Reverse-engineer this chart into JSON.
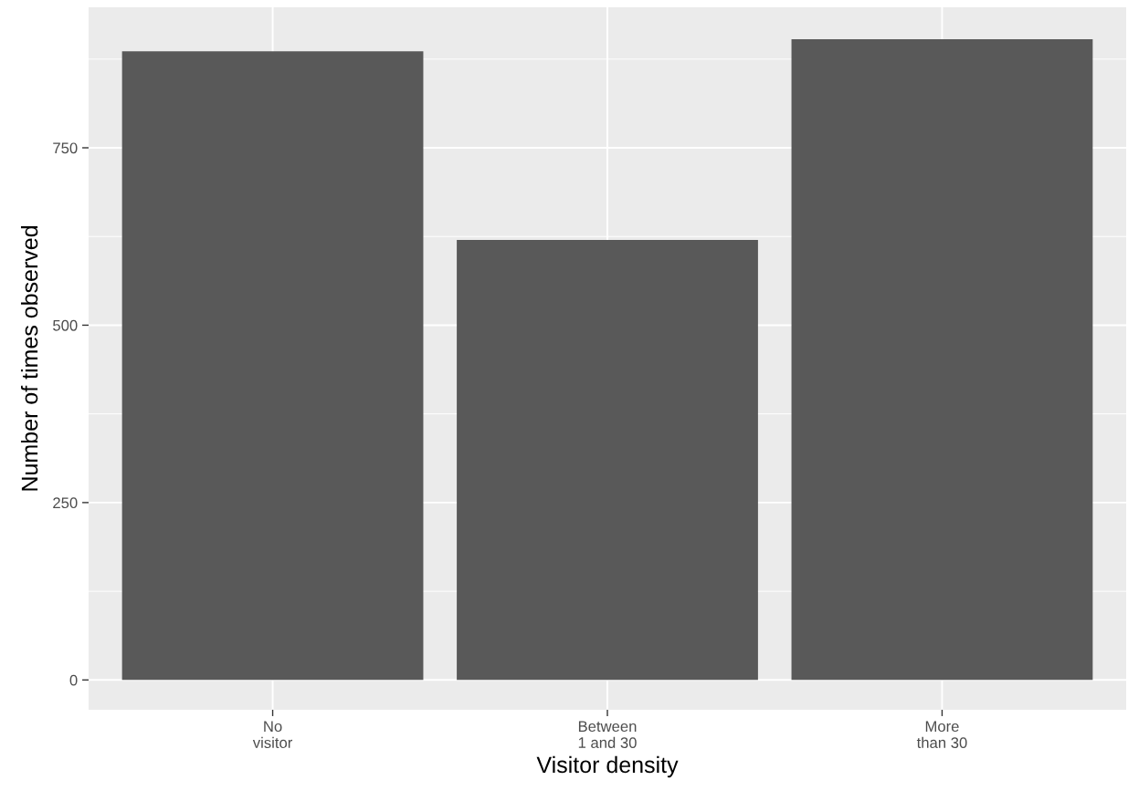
{
  "chart_data": {
    "type": "bar",
    "xlabel": "Visitor density",
    "ylabel": "Number of times observed",
    "categories": [
      "No\nvisitor",
      "Between\n1 and 30",
      "More\nthan 30"
    ],
    "values": [
      886,
      620,
      903
    ],
    "color": "#595959",
    "ylim": [
      -42,
      948
    ],
    "yticks": [
      0,
      250,
      500,
      750
    ],
    "grid": true
  }
}
